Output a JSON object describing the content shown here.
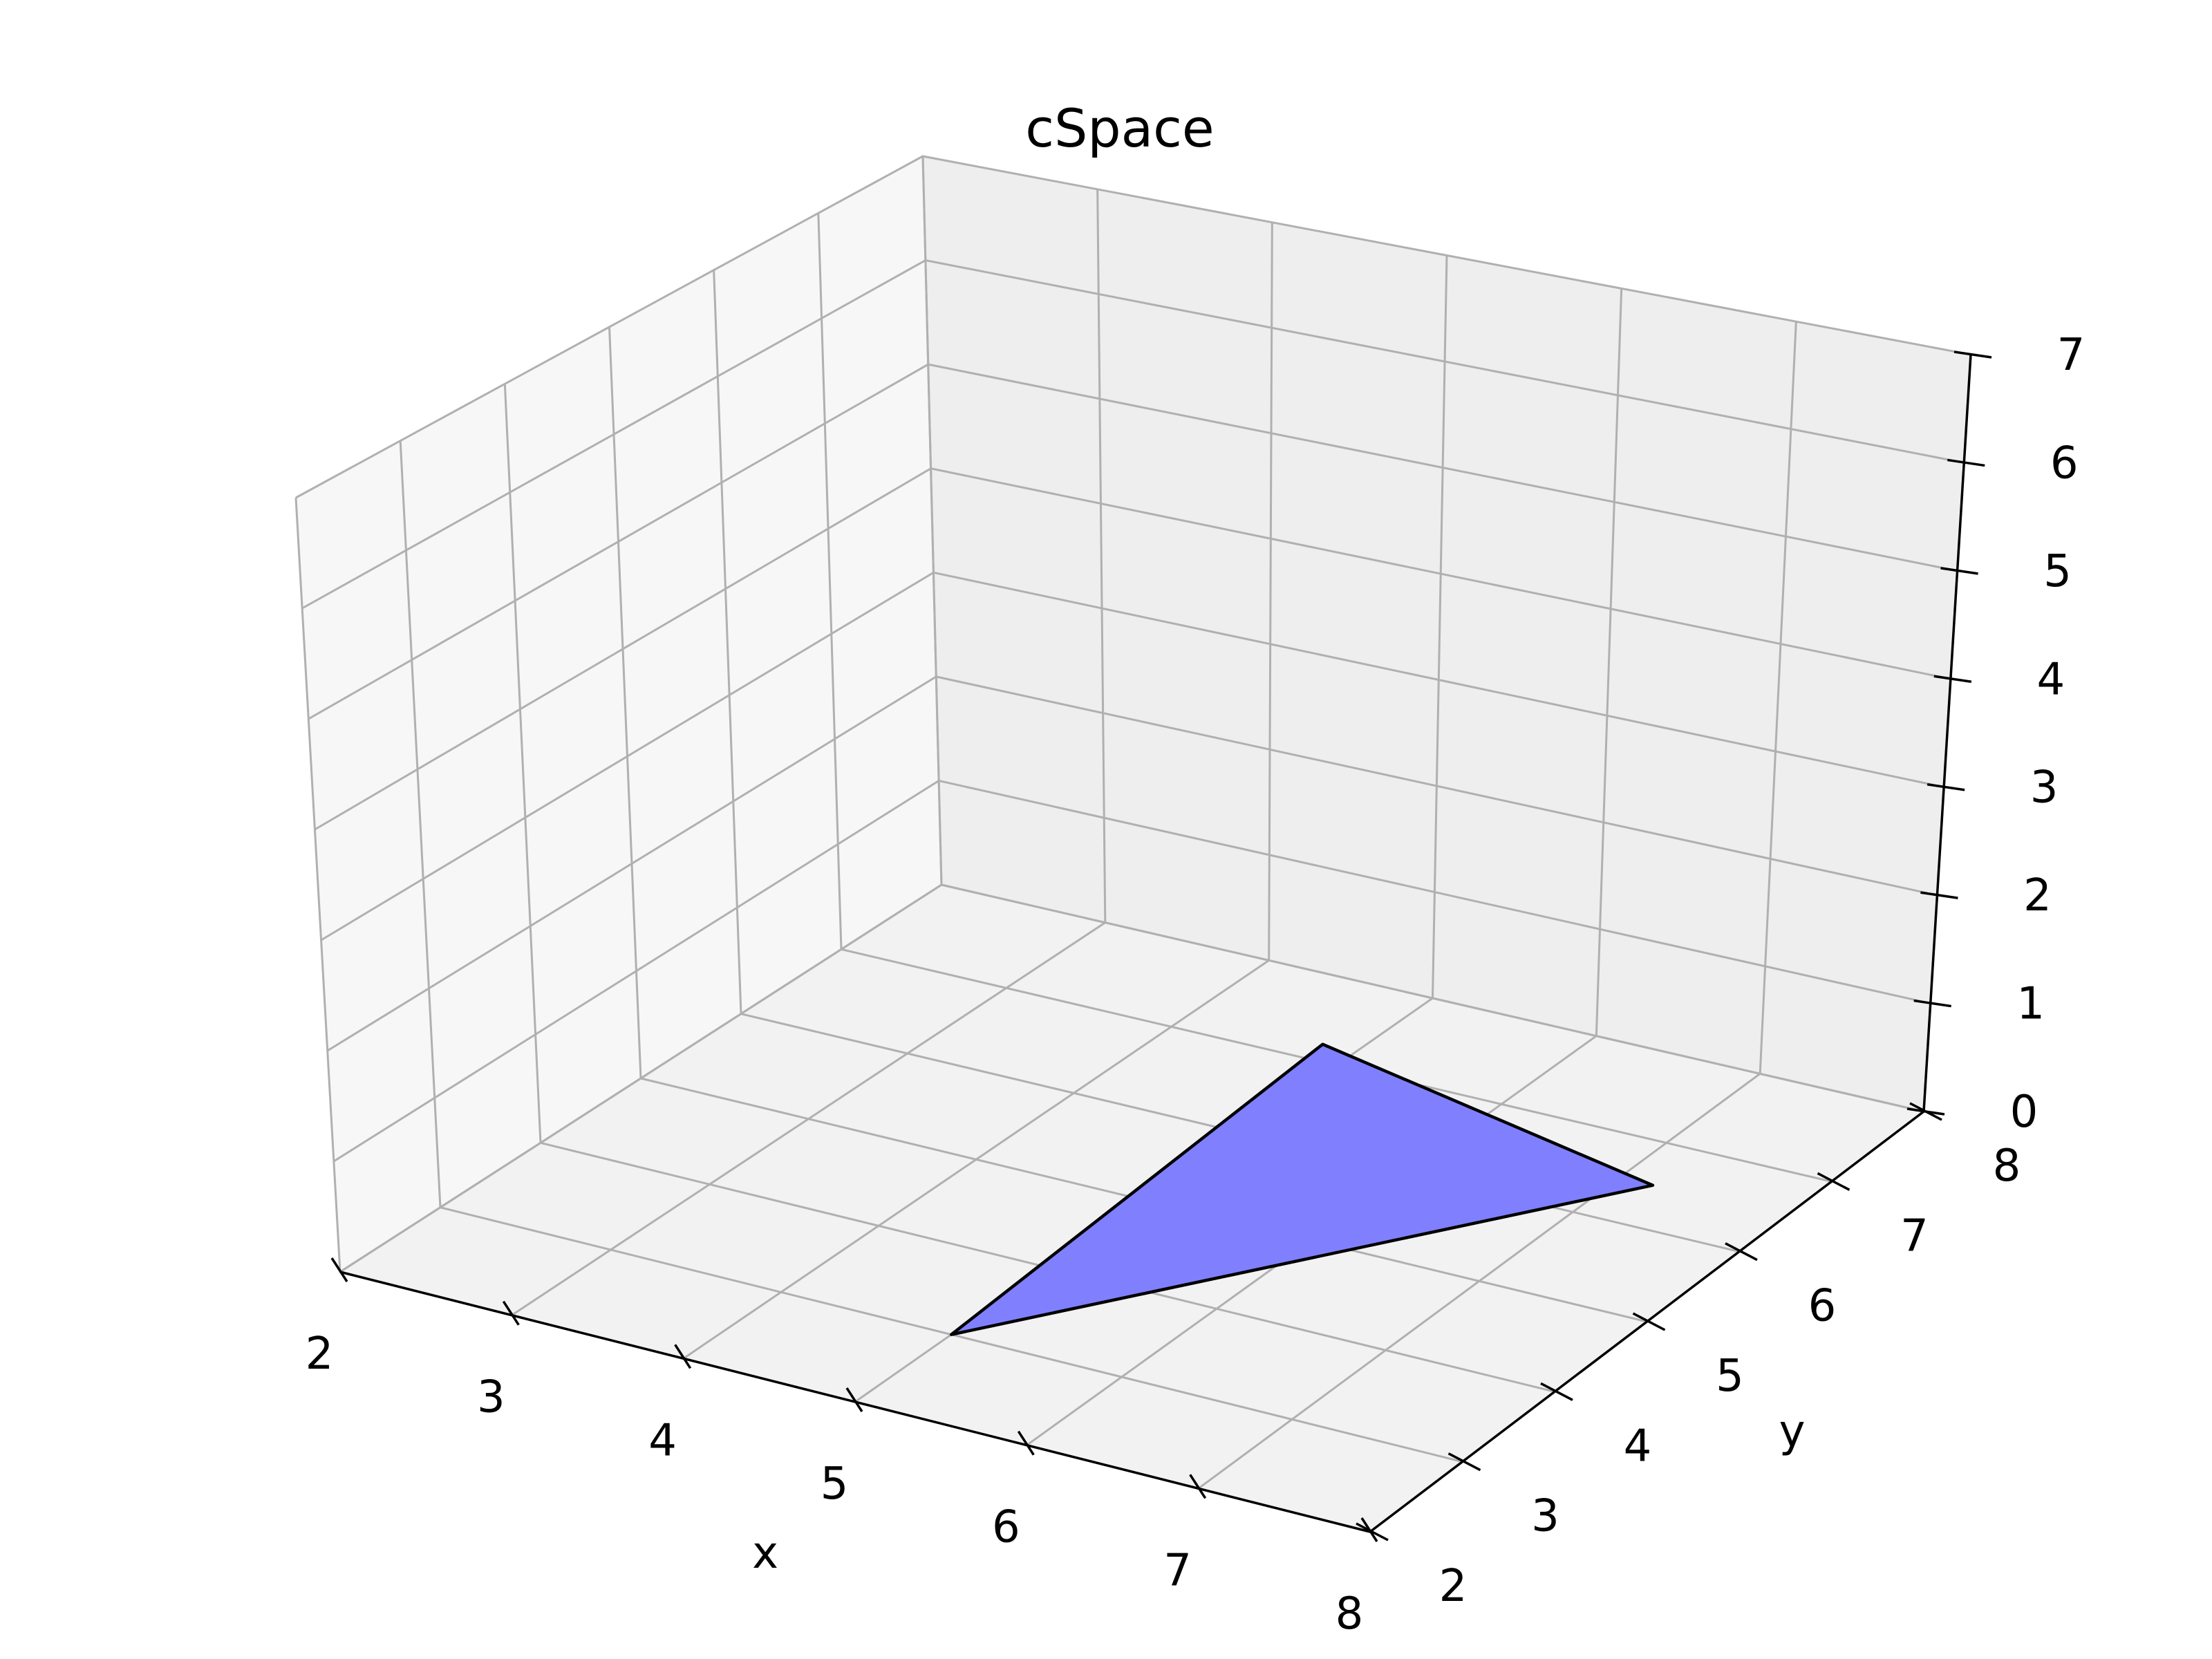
{
  "chart_data": {
    "type": "surface3d",
    "title": "cSpace",
    "xlabel": "x",
    "ylabel": "y",
    "zlabel": "",
    "xlim": [
      2,
      8
    ],
    "ylim": [
      2,
      8
    ],
    "zlim": [
      0,
      7
    ],
    "xticks": [
      "2",
      "3",
      "4",
      "5",
      "6",
      "7",
      "8"
    ],
    "yticks": [
      "2",
      "3",
      "4",
      "5",
      "6",
      "7",
      "8"
    ],
    "zticks": [
      "0",
      "1",
      "2",
      "3",
      "4",
      "5",
      "6",
      "7"
    ],
    "grid": true,
    "series": [
      {
        "kind": "polygon",
        "vertices": [
          [
            5,
            3,
            0
          ],
          [
            4.8,
            7.2,
            0
          ],
          [
            7.2,
            6.5,
            0
          ]
        ],
        "color": "#8080ff",
        "edgecolor": "#000000"
      }
    ]
  }
}
